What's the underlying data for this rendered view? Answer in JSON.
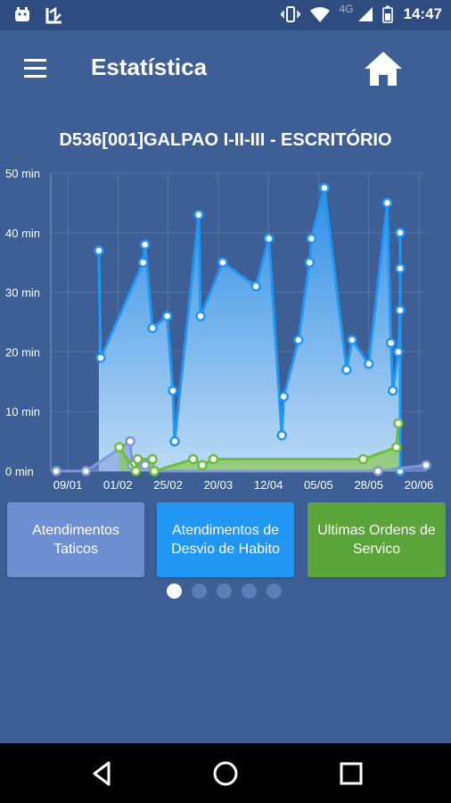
{
  "status_bar": {
    "network": "4G",
    "time": "14:47"
  },
  "app_bar": {
    "title": "Estatística",
    "menu_icon": "hamburger-menu-icon",
    "home_icon": "home-icon"
  },
  "chart_title": "D536[001]GALPAO I-II-III - ESCRITÓRIO",
  "chart_data": {
    "type": "line",
    "title": "D536[001]GALPAO I-II-III - ESCRITÓRIO",
    "y_tick_labels": [
      "0 min",
      "10 min",
      "20 min",
      "30 min",
      "40 min",
      "50 min"
    ],
    "ylim": [
      0,
      50
    ],
    "x_tick_labels": [
      "09/01",
      "01/02",
      "25/02",
      "20/03",
      "12/04",
      "05/05",
      "28/05",
      "20/06"
    ],
    "grid": true,
    "series": [
      {
        "color": "#2196f3",
        "fill": "area",
        "points": [
          [
            "2017-01-04",
            37
          ],
          [
            "2017-01-05",
            19
          ],
          [
            "2017-01-28",
            35
          ],
          [
            "2017-01-29",
            38
          ],
          [
            "2017-02-02",
            24
          ],
          [
            "2017-02-10",
            26
          ],
          [
            "2017-02-13",
            13.5
          ],
          [
            "2017-02-14",
            5
          ],
          [
            "2017-02-27",
            43
          ],
          [
            "2017-02-28",
            26
          ],
          [
            "2017-03-12",
            35
          ],
          [
            "2017-03-30",
            31
          ],
          [
            "2017-04-06",
            39
          ],
          [
            "2017-04-13",
            6
          ],
          [
            "2017-04-14",
            12.5
          ],
          [
            "2017-04-22",
            22
          ],
          [
            "2017-04-28",
            35
          ],
          [
            "2017-04-29",
            39
          ],
          [
            "2017-05-06",
            47.5
          ],
          [
            "2017-05-18",
            17
          ],
          [
            "2017-05-21",
            22
          ],
          [
            "2017-05-30",
            18
          ],
          [
            "2017-06-09",
            45
          ],
          [
            "2017-06-11",
            21.5
          ],
          [
            "2017-06-12",
            13.5
          ],
          [
            "2017-06-15",
            20
          ],
          [
            "2017-06-16",
            27
          ],
          [
            "2017-06-16",
            34
          ],
          [
            "2017-06-16",
            40
          ],
          [
            "2017-06-16",
            0
          ]
        ]
      },
      {
        "color": "#7f97d8",
        "fill": "area",
        "points": [
          [
            "2016-12-12",
            0
          ],
          [
            "2016-12-28",
            0
          ],
          [
            "2017-01-21",
            5
          ],
          [
            "2017-01-22",
            1
          ],
          [
            "2017-01-29",
            1
          ],
          [
            "2017-02-03",
            0
          ],
          [
            "2017-06-04",
            0
          ],
          [
            "2017-06-30",
            1
          ]
        ]
      },
      {
        "color": "#6abf3a",
        "fill": "area",
        "points": [
          [
            "2017-01-15",
            4
          ],
          [
            "2017-01-24",
            0
          ],
          [
            "2017-01-25",
            2
          ],
          [
            "2017-02-02",
            2
          ],
          [
            "2017-02-03",
            0
          ],
          [
            "2017-02-24",
            2
          ],
          [
            "2017-03-01",
            1
          ],
          [
            "2017-03-07",
            2
          ],
          [
            "2017-05-27",
            2
          ],
          [
            "2017-06-14",
            4
          ],
          [
            "2017-06-15",
            8
          ]
        ]
      }
    ]
  },
  "buttons": [
    {
      "label_line1": "Atendimentos",
      "label_line2": "Taticos"
    },
    {
      "label_line1": "Atendimentos de",
      "label_line2": "Desvio de Habito"
    },
    {
      "label_line1": "Ultimas Ordens de",
      "label_line2": "Servico"
    }
  ],
  "pager": {
    "count": 5,
    "active_index": 0
  },
  "nav_bar": {
    "back_icon": "back-icon",
    "home_icon": "home-circle-icon",
    "recents_icon": "recents-icon"
  }
}
